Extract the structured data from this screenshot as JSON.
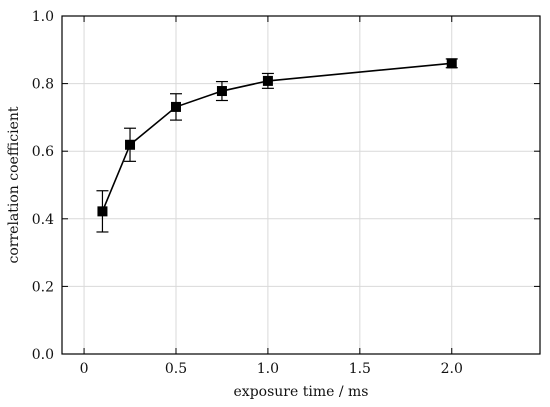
{
  "chart_data": {
    "type": "line",
    "xlabel": "exposure time / ms",
    "ylabel": "correlation coefficient",
    "xlim": [
      -0.12,
      2.48
    ],
    "ylim": [
      0.0,
      1.0
    ],
    "x_ticks": [
      0,
      0.5,
      1.0,
      1.5,
      2.0
    ],
    "x_tick_labels": [
      "0",
      "0.5",
      "1.0",
      "1.5",
      "2.0"
    ],
    "y_ticks": [
      0.0,
      0.2,
      0.4,
      0.6,
      0.8,
      1.0
    ],
    "y_tick_labels": [
      "0.0",
      "0.2",
      "0.4",
      "0.6",
      "0.8",
      "1.0"
    ],
    "grid": true,
    "marker": "square",
    "series": [
      {
        "x": [
          0.1,
          0.25,
          0.5,
          0.75,
          1.0,
          2.0
        ],
        "y": [
          0.422,
          0.619,
          0.731,
          0.778,
          0.808,
          0.86
        ],
        "err": [
          0.061,
          0.049,
          0.039,
          0.028,
          0.022,
          0.013
        ]
      }
    ],
    "colors": {
      "line": "#000000",
      "grid": "#d9d9d9"
    }
  }
}
